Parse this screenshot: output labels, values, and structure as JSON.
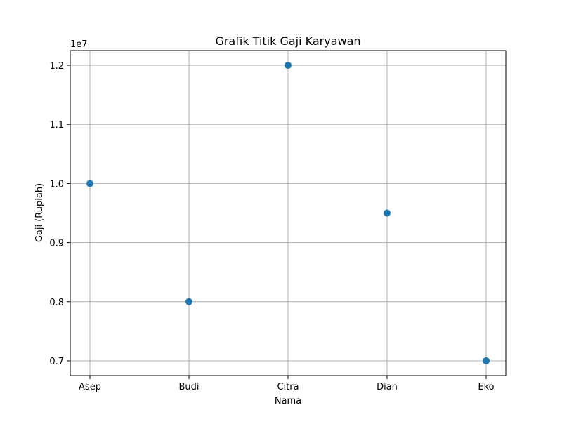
{
  "chart_data": {
    "type": "scatter",
    "title": "Grafik Titik Gaji Karyawan",
    "xlabel": "Nama",
    "ylabel": "Gaji (Rupiah)",
    "y_offset_label": "1e7",
    "categories": [
      "Asep",
      "Budi",
      "Citra",
      "Dian",
      "Eko"
    ],
    "series": [
      {
        "values": [
          10000000,
          8000000,
          12000000,
          9500000,
          7000000
        ],
        "color": "#1f77b4",
        "marker": "circle"
      }
    ],
    "y_ticks": [
      7000000,
      8000000,
      9000000,
      10000000,
      11000000,
      12000000
    ],
    "y_tick_labels": [
      "0.7",
      "0.8",
      "0.9",
      "1.0",
      "1.1",
      "1.2"
    ],
    "ylim": [
      6750000,
      12250000
    ],
    "grid": true,
    "legend": "none"
  }
}
